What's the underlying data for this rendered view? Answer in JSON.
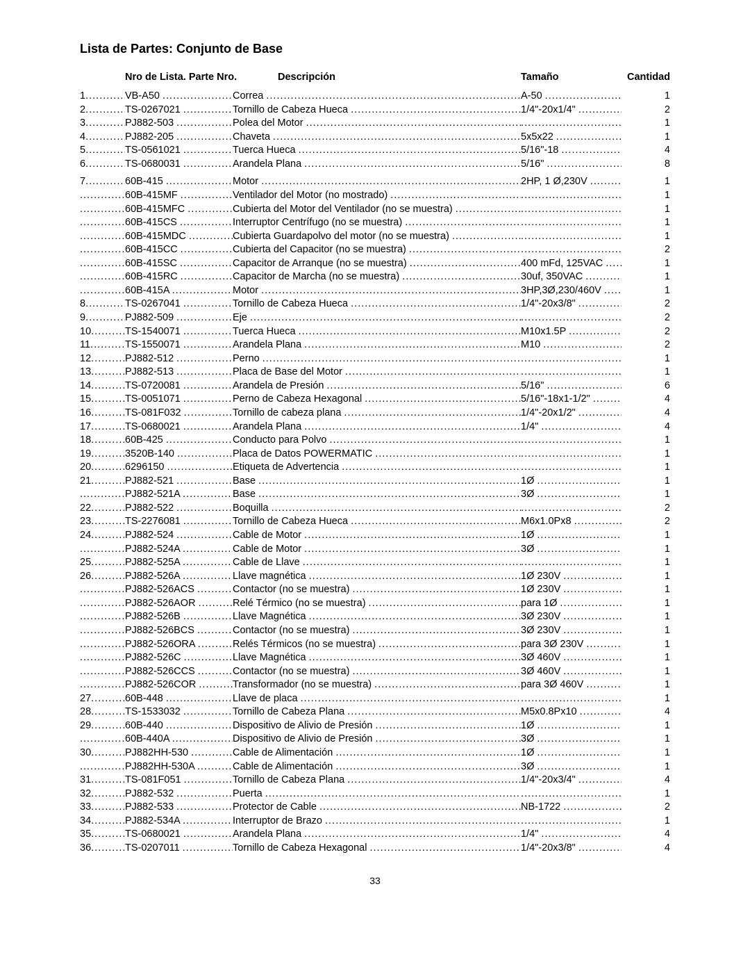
{
  "page_title": "Lista de Partes: Conjunto de Base",
  "columns": {
    "num_part": "Nro de Lista. Parte Nro.",
    "desc": "Descripción",
    "size": "Tamaño",
    "qty": "Cantidad"
  },
  "page_number": "33",
  "rows": [
    {
      "n": "1",
      "p": "VB-A50",
      "d": "Correa",
      "s": "A-50",
      "q": "1"
    },
    {
      "n": "2",
      "p": "TS-0267021",
      "d": "Tornillo de Cabeza Hueca",
      "s": "1/4\"-20x1/4\"",
      "q": "2"
    },
    {
      "n": "3",
      "p": "PJ882-503",
      "d": "Polea del Motor",
      "s": "",
      "q": "1"
    },
    {
      "n": "4",
      "p": "PJ882-205",
      "d": "Chaveta",
      "s": "5x5x22",
      "q": "1"
    },
    {
      "n": "5",
      "p": "TS-0561021",
      "d": "Tuerca Hueca",
      "s": "5/16\"-18",
      "q": "4"
    },
    {
      "n": "6",
      "p": "TS-0680031",
      "d": "Arandela Plana",
      "s": "5/16\"",
      "q": "8"
    },
    {
      "gap": true
    },
    {
      "n": "7",
      "p": "60B-415",
      "d": "Motor",
      "s": "2HP, 1 Ø,230V",
      "q": "1"
    },
    {
      "n": "",
      "p": "60B-415MF",
      "d": "Ventilador del Motor (no mostrado)",
      "s": "",
      "q": "1"
    },
    {
      "n": "",
      "p": "60B-415MFC",
      "d": "Cubierta del Motor del Ventilador (no se muestra)",
      "s": "",
      "q": "1"
    },
    {
      "n": "",
      "p": "60B-415CS",
      "d": "Interruptor Centrífugo (no se muestra)",
      "s": "",
      "q": "1"
    },
    {
      "n": "",
      "p": "60B-415MDC",
      "d": "Cubierta Guardapolvo del motor (no se muestra)",
      "s": "",
      "q": "1"
    },
    {
      "n": "",
      "p": "60B-415CC",
      "d": "Cubierta del Capacitor (no se muestra)",
      "s": "",
      "q": "2"
    },
    {
      "n": "",
      "p": "60B-415SC",
      "d": "Capacitor de Arranque (no se muestra)",
      "s": "400 mFd, 125VAC",
      "q": "1"
    },
    {
      "n": "",
      "p": "60B-415RC",
      "d": "Capacitor de Marcha (no se muestra)",
      "s": "30uf, 350VAC",
      "q": "1"
    },
    {
      "n": "",
      "p": "60B-415A",
      "d": "Motor",
      "s": "3HP,3Ø,230/460V",
      "q": "1"
    },
    {
      "n": "8",
      "p": "TS-0267041",
      "d": "Tornillo de Cabeza Hueca",
      "s": "1/4\"-20x3/8\"",
      "q": "2"
    },
    {
      "n": "9",
      "p": "PJ882-509",
      "d": "Eje",
      "s": "",
      "q": "2"
    },
    {
      "n": "10",
      "p": "TS-1540071",
      "d": "Tuerca Hueca",
      "s": "M10x1.5P",
      "q": "2"
    },
    {
      "n": "11",
      "p": "TS-1550071",
      "d": "Arandela Plana",
      "s": "M10",
      "q": "2"
    },
    {
      "n": "12",
      "p": "PJ882-512",
      "d": "Perno",
      "s": "",
      "q": "1"
    },
    {
      "n": "13",
      "p": "PJ882-513",
      "d": "Placa de Base del Motor",
      "s": "",
      "q": "1"
    },
    {
      "n": "14",
      "p": "TS-0720081",
      "d": "Arandela de Presión",
      "s": "5/16\"",
      "q": "6"
    },
    {
      "n": "15",
      "p": "TS-0051071",
      "d": "Perno de Cabeza Hexagonal",
      "s": "5/16\"-18x1-1/2\"",
      "q": "4"
    },
    {
      "n": "16",
      "p": "TS-081F032",
      "d": "Tornillo de cabeza plana",
      "s": "1/4\"-20x1/2\"",
      "q": "4"
    },
    {
      "n": "17",
      "p": "TS-0680021",
      "d": "Arandela Plana",
      "s": "1/4\"",
      "q": "4"
    },
    {
      "n": "18",
      "p": "60B-425",
      "d": "Conducto para Polvo",
      "s": "",
      "q": "1"
    },
    {
      "n": "19",
      "p": "3520B-140",
      "d": "Placa de Datos POWERMATIC",
      "s": "",
      "q": "1"
    },
    {
      "n": "20",
      "p": "6296150",
      "d": "Etiqueta de Advertencia",
      "s": "",
      "q": "1"
    },
    {
      "n": "21",
      "p": "PJ882-521",
      "d": "Base",
      "s": "1Ø",
      "q": "1"
    },
    {
      "n": "",
      "p": "PJ882-521A",
      "d": "Base",
      "s": "3Ø",
      "q": "1"
    },
    {
      "n": "22",
      "p": "PJ882-522",
      "d": "Boquilla",
      "s": "",
      "q": "2"
    },
    {
      "n": "23",
      "p": "TS-2276081",
      "d": "Tornillo de Cabeza Hueca",
      "s": "M6x1.0Px8",
      "q": "2"
    },
    {
      "n": "24",
      "p": "PJ882-524",
      "d": "Cable de Motor",
      "s": "1Ø",
      "q": "1"
    },
    {
      "n": "",
      "p": "PJ882-524A",
      "d": "Cable de Motor",
      "s": "3Ø",
      "q": "1"
    },
    {
      "n": "25",
      "p": "PJ882-525A",
      "d": "Cable de Llave",
      "s": "",
      "q": "1"
    },
    {
      "n": "26",
      "p": "PJ882-526A",
      "d": "Llave magnética",
      "s": "1Ø 230V",
      "q": "1"
    },
    {
      "n": "",
      "p": "PJ882-526ACS",
      "d": "Contactor (no se muestra)",
      "s": "1Ø 230V",
      "q": "1"
    },
    {
      "n": "",
      "p": "PJ882-526AOR",
      "d": "Relé Térmico (no se muestra)",
      "s": "para 1Ø",
      "q": "1"
    },
    {
      "n": "",
      "p": "PJ882-526B",
      "d": "Llave Magnética",
      "s": "3Ø 230V",
      "q": "1"
    },
    {
      "n": "",
      "p": "PJ882-526BCS",
      "d": "Contactor (no se muestra)",
      "s": "3Ø 230V",
      "q": "1"
    },
    {
      "n": "",
      "p": "PJ882-526ORA",
      "d": "Relés Térmicos (no se muestra)",
      "s": "para 3Ø 230V",
      "q": "1"
    },
    {
      "n": "",
      "p": "PJ882-526C",
      "d": "Llave Magnética",
      "s": "3Ø 460V",
      "q": "1"
    },
    {
      "n": "",
      "p": "PJ882-526CCS",
      "d": "Contactor (no se muestra)",
      "s": "3Ø 460V",
      "q": "1"
    },
    {
      "n": "",
      "p": "PJ882-526COR",
      "d": "Transformador (no se muestra)",
      "s": "para 3Ø 460V",
      "q": "1"
    },
    {
      "n": "27",
      "p": "60B-448",
      "d": "Llave de placa",
      "s": "",
      "q": "1"
    },
    {
      "n": "28",
      "p": "TS-1533032",
      "d": "Tornillo de Cabeza Plana",
      "s": "M5x0.8Px10",
      "q": "4"
    },
    {
      "n": "29",
      "p": "60B-440",
      "d": "Dispositivo de Alivio de Presión",
      "s": "1Ø",
      "q": "1"
    },
    {
      "n": "",
      "p": "60B-440A",
      "d": "Dispositivo de Alivio de Presión",
      "s": "3Ø",
      "q": "1"
    },
    {
      "n": "30",
      "p": "PJ882HH-530",
      "d": "Cable de Alimentación",
      "s": "1Ø",
      "q": "1"
    },
    {
      "n": "",
      "p": "PJ882HH-530A",
      "d": "Cable de Alimentación",
      "s": "3Ø",
      "q": "1"
    },
    {
      "n": "31",
      "p": "TS-081F051",
      "d": "Tornillo de Cabeza Plana",
      "s": "1/4\"-20x3/4\"",
      "q": "4"
    },
    {
      "n": "32",
      "p": "PJ882-532",
      "d": "Puerta",
      "s": "",
      "q": "1"
    },
    {
      "n": "33",
      "p": "PJ882-533",
      "d": "Protector de Cable",
      "s": "NB-1722",
      "q": "2"
    },
    {
      "n": "34",
      "p": "PJ882-534A",
      "d": "Interruptor de Brazo",
      "s": "",
      "q": "1"
    },
    {
      "n": "35",
      "p": "TS-0680021",
      "d": "Arandela Plana",
      "s": "1/4\"",
      "q": "4"
    },
    {
      "n": "36",
      "p": "TS-0207011",
      "d": "Tornillo de Cabeza Hexagonal",
      "s": "1/4\"-20x3/8\"",
      "q": "4"
    }
  ]
}
